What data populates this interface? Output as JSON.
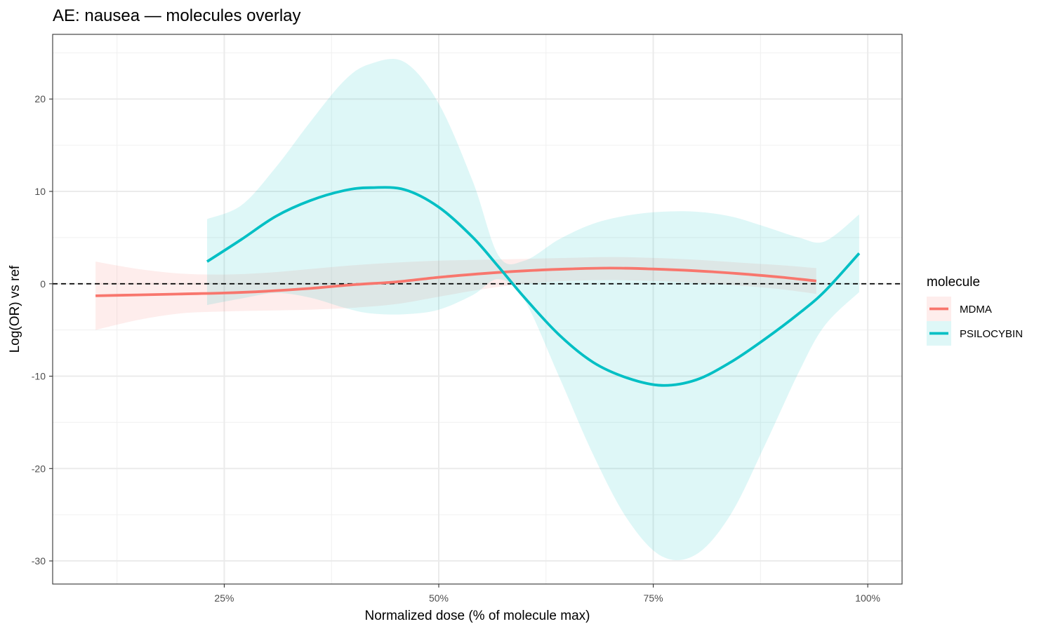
{
  "chart_data": {
    "type": "line",
    "title": "AE: nausea — molecules overlay",
    "xlabel": "Normalized dose (% of molecule max)",
    "ylabel": "Log(OR) vs ref",
    "xlim": [
      5,
      104
    ],
    "ylim": [
      -32.5,
      27
    ],
    "x_ticks": [
      25,
      50,
      75,
      100
    ],
    "x_tick_labels": [
      "25%",
      "50%",
      "75%",
      "100%"
    ],
    "y_ticks": [
      -30,
      -20,
      -10,
      0,
      10,
      20
    ],
    "y_tick_labels": [
      "-30",
      "-20",
      "-10",
      "0",
      "10",
      "20"
    ],
    "grid": true,
    "reference_line": {
      "y": 0,
      "style": "dashed"
    },
    "legend": {
      "title": "molecule",
      "position": "right"
    },
    "series": [
      {
        "name": "MDMA",
        "color": "#F8766D",
        "band_color": "#F8766D",
        "x": [
          10,
          15,
          20,
          25,
          30,
          35,
          40,
          45,
          50,
          55,
          60,
          65,
          70,
          75,
          80,
          85,
          90,
          94
        ],
        "y": [
          -1.3,
          -1.2,
          -1.1,
          -1.0,
          -0.8,
          -0.5,
          -0.1,
          0.2,
          0.7,
          1.1,
          1.4,
          1.6,
          1.7,
          1.6,
          1.4,
          1.1,
          0.7,
          0.3
        ],
        "lower": [
          -5.0,
          -3.9,
          -3.2,
          -3.0,
          -2.9,
          -2.8,
          -2.6,
          -2.2,
          -1.4,
          -0.6,
          0.0,
          0.3,
          0.4,
          0.3,
          0.1,
          -0.2,
          -0.6,
          -1.1
        ],
        "upper": [
          2.4,
          1.6,
          1.1,
          1.0,
          1.2,
          1.6,
          2.0,
          2.3,
          2.5,
          2.6,
          2.7,
          2.8,
          2.9,
          2.8,
          2.6,
          2.3,
          2.0,
          1.7
        ]
      },
      {
        "name": "PSILOCYBIN",
        "color": "#00BFC4",
        "band_color": "#00BFC4",
        "x": [
          23,
          27,
          31,
          35,
          39,
          42,
          46,
          50,
          54,
          57,
          60,
          64,
          68,
          72,
          76,
          80,
          84,
          88,
          92,
          95,
          99
        ],
        "y": [
          2.4,
          4.8,
          7.3,
          9.0,
          10.1,
          10.4,
          10.2,
          8.3,
          5.0,
          1.8,
          -1.5,
          -5.5,
          -8.5,
          -10.2,
          -11.0,
          -10.4,
          -8.5,
          -6.0,
          -3.2,
          -0.8,
          3.3
        ],
        "lower": [
          -2.3,
          -1.6,
          -1.0,
          -1.5,
          -2.6,
          -3.2,
          -3.3,
          -2.8,
          -1.2,
          0.5,
          -1.8,
          -10.0,
          -18.5,
          -25.5,
          -29.5,
          -29.3,
          -25.0,
          -17.5,
          -9.5,
          -4.5,
          -0.9
        ],
        "upper": [
          7.0,
          8.5,
          12.6,
          17.5,
          22.0,
          23.8,
          24.0,
          19.5,
          11.0,
          3.0,
          2.5,
          4.8,
          6.5,
          7.4,
          7.8,
          7.8,
          7.3,
          6.2,
          5.0,
          4.6,
          7.5
        ]
      }
    ]
  }
}
